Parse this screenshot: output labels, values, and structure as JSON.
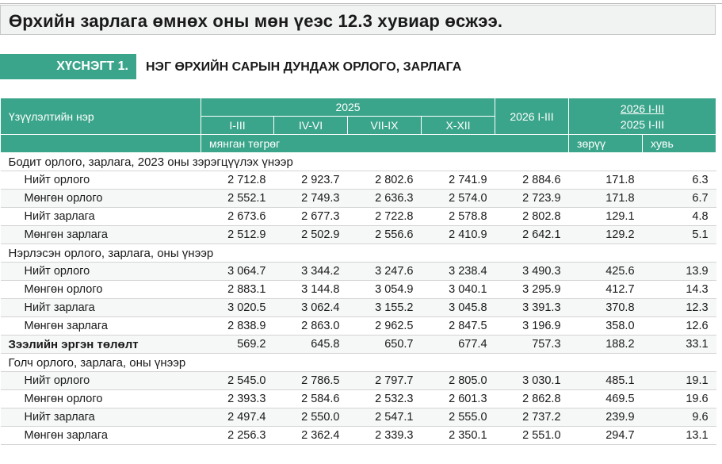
{
  "header": {
    "title": "Өрхийн зарлага өмнөх оны мөн үеэс 12.3 хувиар өсжээ."
  },
  "table_label": {
    "number": "ХҮСНЭГТ 1.",
    "title": "НЭГ ӨРХИЙН САРЫН ДУНДАЖ ОРЛОГО, ЗАРЛАГА"
  },
  "table": {
    "head": {
      "name": "Үзүүлэлтийн нэр",
      "year": "2025",
      "quarters": [
        "I-III",
        "IV-VI",
        "VII-IX",
        "X-XII"
      ],
      "current": "2026 I-III",
      "ratio_top": "2026 I-III",
      "ratio_bottom": "2025 I-III",
      "unit": "мянган төгрөг",
      "diff": "зөрүү",
      "percent": "хувь"
    },
    "groups": [
      {
        "title": "Бодит орлого, зарлага, 2023 оны зэрэгцүүлэх үнээр",
        "rows": [
          {
            "label": "Нийт орлого",
            "values": [
              "2 712.8",
              "2 923.7",
              "2 802.6",
              "2 741.9",
              "2 884.6",
              "171.8",
              "6.3"
            ]
          },
          {
            "label": "Мөнгөн орлого",
            "values": [
              "2 552.1",
              "2 749.3",
              "2 636.3",
              "2 574.0",
              "2 723.9",
              "171.8",
              "6.7"
            ]
          },
          {
            "label": "Нийт зарлага",
            "values": [
              "2 673.6",
              "2 677.3",
              "2 722.8",
              "2 578.8",
              "2 802.8",
              "129.1",
              "4.8"
            ]
          },
          {
            "label": "Мөнгөн зарлага",
            "values": [
              "2 512.9",
              "2 502.9",
              "2 556.6",
              "2 410.9",
              "2 642.1",
              "129.2",
              "5.1"
            ]
          }
        ]
      },
      {
        "title": "Нэрлэсэн орлого, зарлага, оны үнээр",
        "rows": [
          {
            "label": "Нийт орлого",
            "values": [
              "3 064.7",
              "3 344.2",
              "3 247.6",
              "3 238.4",
              "3 490.3",
              "425.6",
              "13.9"
            ]
          },
          {
            "label": "Мөнгөн орлого",
            "values": [
              "2 883.1",
              "3 144.8",
              "3 054.9",
              "3 040.1",
              "3 295.9",
              "412.7",
              "14.3"
            ]
          },
          {
            "label": "Нийт зарлага",
            "values": [
              "3 020.5",
              "3 062.4",
              "3 155.2",
              "3 045.8",
              "3 391.3",
              "370.8",
              "12.3"
            ]
          },
          {
            "label": "Мөнгөн зарлага",
            "values": [
              "2 838.9",
              "2 863.0",
              "2 962.5",
              "2 847.5",
              "3 196.9",
              "358.0",
              "12.6"
            ]
          }
        ]
      },
      {
        "label": "Зээлийн эргэн төлөлт",
        "values": [
          "569.2",
          "645.8",
          "650.7",
          "677.4",
          "757.3",
          "188.2",
          "33.1"
        ]
      },
      {
        "title": "Голч орлого, зарлага, оны үнээр",
        "rows": [
          {
            "label": "Нийт орлого",
            "values": [
              "2 545.0",
              "2 786.5",
              "2 797.7",
              "2 805.0",
              "3 030.1",
              "485.1",
              "19.1"
            ]
          },
          {
            "label": "Мөнгөн орлого",
            "values": [
              "2 393.3",
              "2 584.6",
              "2 532.3",
              "2 601.3",
              "2 862.8",
              "469.5",
              "19.6"
            ]
          },
          {
            "label": "Нийт зарлага",
            "values": [
              "2 497.4",
              "2 550.0",
              "2 547.1",
              "2 555.0",
              "2 737.2",
              "239.9",
              "9.6"
            ]
          },
          {
            "label": "Мөнгөн зарлага",
            "values": [
              "2 256.3",
              "2 362.4",
              "2 339.3",
              "2 350.1",
              "2 551.0",
              "294.7",
              "13.1"
            ]
          }
        ]
      }
    ]
  }
}
